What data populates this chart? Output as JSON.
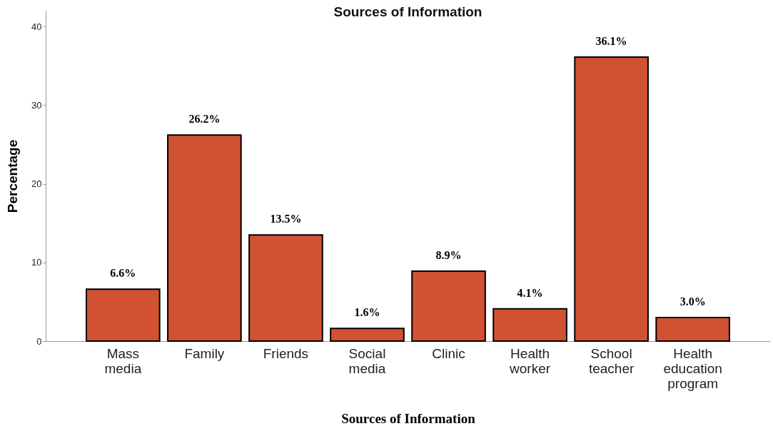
{
  "chart_data": {
    "type": "bar",
    "title": "Sources of Information",
    "xlabel": "Sources of Information",
    "ylabel": "Percentage",
    "categories": [
      "Mass media",
      "Family",
      "Friends",
      "Social media",
      "Clinic",
      "Health worker",
      "School teacher",
      "Health education program"
    ],
    "values": [
      6.6,
      26.2,
      13.5,
      1.6,
      8.9,
      4.1,
      36.1,
      3.0
    ],
    "value_labels": [
      "6.6%",
      "26.2%",
      "13.5%",
      "1.6%",
      "8.9%",
      "4.1%",
      "36.1%",
      "3.0%"
    ],
    "color": "#d05233",
    "ylim": [
      0,
      42
    ],
    "yticks": [
      0,
      10,
      20,
      30,
      40
    ],
    "grid": false
  }
}
